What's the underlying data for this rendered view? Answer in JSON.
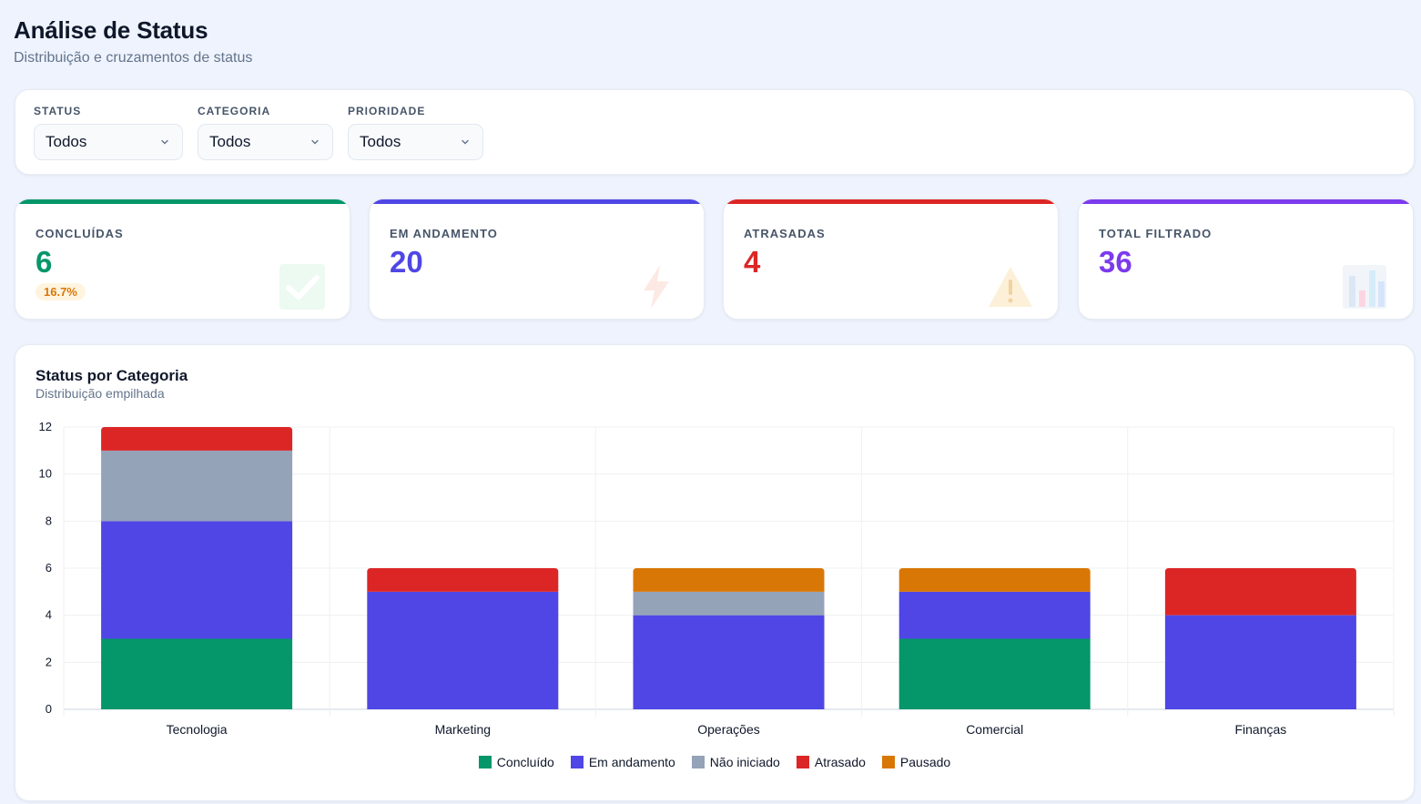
{
  "header": {
    "title": "Análise de Status",
    "subtitle": "Distribuição e cruzamentos de status"
  },
  "filters": [
    {
      "label": "STATUS",
      "value": "Todos"
    },
    {
      "label": "CATEGORIA",
      "value": "Todos"
    },
    {
      "label": "PRIORIDADE",
      "value": "Todos"
    }
  ],
  "kpis": [
    {
      "label": "CONCLUÍDAS",
      "value": "6",
      "badge": "16.7%",
      "color": "#059669",
      "icon": "check-icon"
    },
    {
      "label": "EM ANDAMENTO",
      "value": "20",
      "color": "#4f46e5",
      "icon": "lightning-icon"
    },
    {
      "label": "ATRASADAS",
      "value": "4",
      "color": "#dc2626",
      "icon": "warning-icon"
    },
    {
      "label": "TOTAL FILTRADO",
      "value": "36",
      "color": "#7c3aed",
      "icon": "bar-chart-icon"
    }
  ],
  "chart": {
    "title": "Status por Categoria",
    "subtitle": "Distribuição empilhada"
  },
  "chart_data": {
    "type": "bar",
    "stacked": true,
    "categories": [
      "Tecnologia",
      "Marketing",
      "Operações",
      "Comercial",
      "Finanças"
    ],
    "series": [
      {
        "name": "Concluído",
        "color": "#059669",
        "values": [
          3,
          0,
          0,
          3,
          0
        ]
      },
      {
        "name": "Em andamento",
        "color": "#4f46e5",
        "values": [
          5,
          5,
          4,
          2,
          4
        ]
      },
      {
        "name": "Não iniciado",
        "color": "#94a3b8",
        "values": [
          3,
          0,
          1,
          0,
          0
        ]
      },
      {
        "name": "Atrasado",
        "color": "#dc2626",
        "values": [
          1,
          1,
          0,
          0,
          2
        ]
      },
      {
        "name": "Pausado",
        "color": "#d97706",
        "values": [
          0,
          0,
          1,
          1,
          0
        ]
      }
    ],
    "ylim": [
      0,
      12
    ],
    "yticks": [
      0,
      2,
      4,
      6,
      8,
      10,
      12
    ],
    "grid": true,
    "legend": "bottom"
  }
}
